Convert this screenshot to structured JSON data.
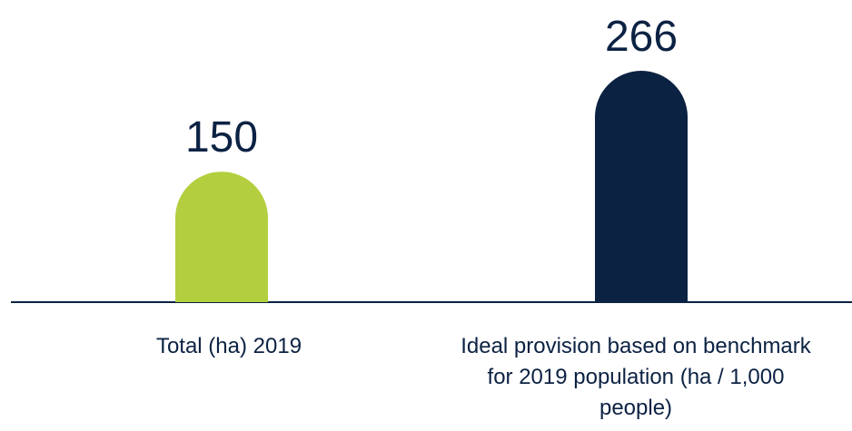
{
  "chart_data": {
    "type": "bar",
    "categories": [
      "Total (ha) 2019",
      "Ideal provision based on benchmark for 2019 population (ha / 1,000 people)"
    ],
    "values": [
      150,
      266
    ],
    "colors": [
      "#b3cf3f",
      "#0c2243"
    ]
  }
}
